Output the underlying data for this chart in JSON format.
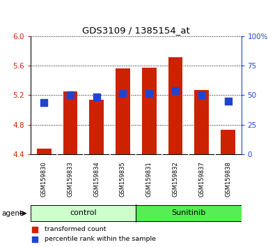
{
  "title": "GDS3109 / 1385154_at",
  "samples": [
    "GSM159830",
    "GSM159833",
    "GSM159834",
    "GSM159835",
    "GSM159831",
    "GSM159832",
    "GSM159837",
    "GSM159838"
  ],
  "bar_heights": [
    4.47,
    5.25,
    5.14,
    5.57,
    5.58,
    5.72,
    5.27,
    4.73
  ],
  "bar_base": 4.4,
  "blue_dots": [
    5.1,
    5.2,
    5.18,
    5.22,
    5.22,
    5.265,
    5.2,
    5.12
  ],
  "bar_color": "#cc2200",
  "dot_color": "#2244cc",
  "ylim": [
    4.4,
    6.0
  ],
  "yticks": [
    4.4,
    4.8,
    5.2,
    5.6,
    6.0
  ],
  "right_yticks_pct": [
    0,
    25,
    50,
    75,
    100
  ],
  "right_ylabels": [
    "0",
    "25",
    "50",
    "75",
    "100%"
  ],
  "left_tick_color": "#cc2200",
  "right_axis_color": "#2244cc",
  "groups": [
    {
      "label": "control",
      "indices": [
        0,
        1,
        2,
        3
      ],
      "color": "#ccffcc"
    },
    {
      "label": "Sunitinib",
      "indices": [
        4,
        5,
        6,
        7
      ],
      "color": "#55ee55"
    }
  ],
  "agent_label": "agent",
  "bar_width": 0.55,
  "dot_size": 50,
  "background_color": "#ffffff",
  "tick_label_area_bg": "#cccccc",
  "legend_red_label": "transformed count",
  "legend_blue_label": "percentile rank within the sample"
}
